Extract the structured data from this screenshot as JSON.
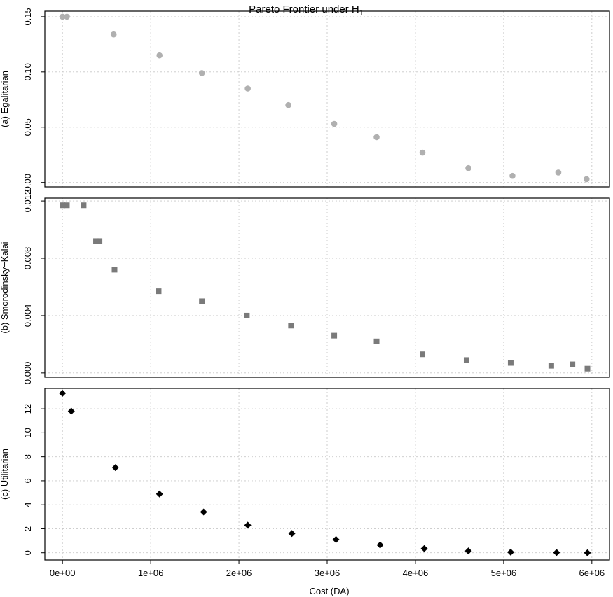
{
  "chart_data": {
    "type": "scatter",
    "title": "Pareto Frontier under H",
    "title_subscript": "1",
    "xlabel": "Cost (DA)",
    "xlim": [
      -200000,
      6200000
    ],
    "x_ticks": [
      0,
      1000000,
      2000000,
      3000000,
      4000000,
      5000000,
      6000000
    ],
    "x_tick_labels": [
      "0e+00",
      "1e+06",
      "2e+06",
      "3e+06",
      "4e+06",
      "5e+06",
      "6e+06"
    ],
    "grid": true,
    "panels": [
      {
        "ylabel": "(a) Egalitarian",
        "ylim": [
          -0.004,
          0.155
        ],
        "y_ticks": [
          0,
          0.05,
          0.1,
          0.15
        ],
        "y_tick_labels": [
          "0.00",
          "0.05",
          "0.10",
          "0.15"
        ],
        "marker": "circle",
        "color": "#b0b0b0",
        "points": [
          {
            "x": 0,
            "y": 0.15
          },
          {
            "x": 50000,
            "y": 0.15
          },
          {
            "x": 580000,
            "y": 0.134
          },
          {
            "x": 1100000,
            "y": 0.115
          },
          {
            "x": 1580000,
            "y": 0.099
          },
          {
            "x": 2100000,
            "y": 0.085
          },
          {
            "x": 2560000,
            "y": 0.07
          },
          {
            "x": 3080000,
            "y": 0.053
          },
          {
            "x": 3560000,
            "y": 0.041
          },
          {
            "x": 4080000,
            "y": 0.027
          },
          {
            "x": 4600000,
            "y": 0.013
          },
          {
            "x": 5100000,
            "y": 0.006
          },
          {
            "x": 5620000,
            "y": 0.009
          },
          {
            "x": 5940000,
            "y": 0.003
          }
        ]
      },
      {
        "ylabel": "(b) Smorodinsky−Kalai",
        "ylim": [
          -0.0003,
          0.0122
        ],
        "y_ticks": [
          0,
          0.004,
          0.008,
          0.012
        ],
        "y_tick_labels": [
          "0.000",
          "0.004",
          "0.008",
          "0.012"
        ],
        "marker": "square",
        "color": "#7a7a7a",
        "points": [
          {
            "x": 0,
            "y": 0.0117
          },
          {
            "x": 50000,
            "y": 0.0117
          },
          {
            "x": 240000,
            "y": 0.0117
          },
          {
            "x": 380000,
            "y": 0.0092
          },
          {
            "x": 420000,
            "y": 0.0092
          },
          {
            "x": 590000,
            "y": 0.0072
          },
          {
            "x": 1090000,
            "y": 0.0057
          },
          {
            "x": 1580000,
            "y": 0.005
          },
          {
            "x": 2090000,
            "y": 0.004
          },
          {
            "x": 2590000,
            "y": 0.0033
          },
          {
            "x": 3080000,
            "y": 0.0026
          },
          {
            "x": 3560000,
            "y": 0.0022
          },
          {
            "x": 4080000,
            "y": 0.0013
          },
          {
            "x": 4580000,
            "y": 0.0009
          },
          {
            "x": 5080000,
            "y": 0.0007
          },
          {
            "x": 5540000,
            "y": 0.0005
          },
          {
            "x": 5780000,
            "y": 0.0006
          },
          {
            "x": 5950000,
            "y": 0.0003
          }
        ]
      },
      {
        "ylabel": "(c) Utilitarian",
        "ylim": [
          -0.6,
          13.7
        ],
        "y_ticks": [
          0,
          2,
          4,
          6,
          8,
          10,
          12
        ],
        "y_tick_labels": [
          "0",
          "2",
          "4",
          "6",
          "8",
          "10",
          "12"
        ],
        "marker": "diamond",
        "color": "#000000",
        "points": [
          {
            "x": 0,
            "y": 13.3
          },
          {
            "x": 100000,
            "y": 11.8
          },
          {
            "x": 600000,
            "y": 7.1
          },
          {
            "x": 1100000,
            "y": 4.9
          },
          {
            "x": 1600000,
            "y": 3.4
          },
          {
            "x": 2100000,
            "y": 2.3
          },
          {
            "x": 2600000,
            "y": 1.6
          },
          {
            "x": 3100000,
            "y": 1.1
          },
          {
            "x": 3600000,
            "y": 0.65
          },
          {
            "x": 4100000,
            "y": 0.35
          },
          {
            "x": 4600000,
            "y": 0.15
          },
          {
            "x": 5080000,
            "y": 0.05
          },
          {
            "x": 5600000,
            "y": 0.02
          },
          {
            "x": 5950000,
            "y": 0.0
          }
        ]
      }
    ]
  }
}
